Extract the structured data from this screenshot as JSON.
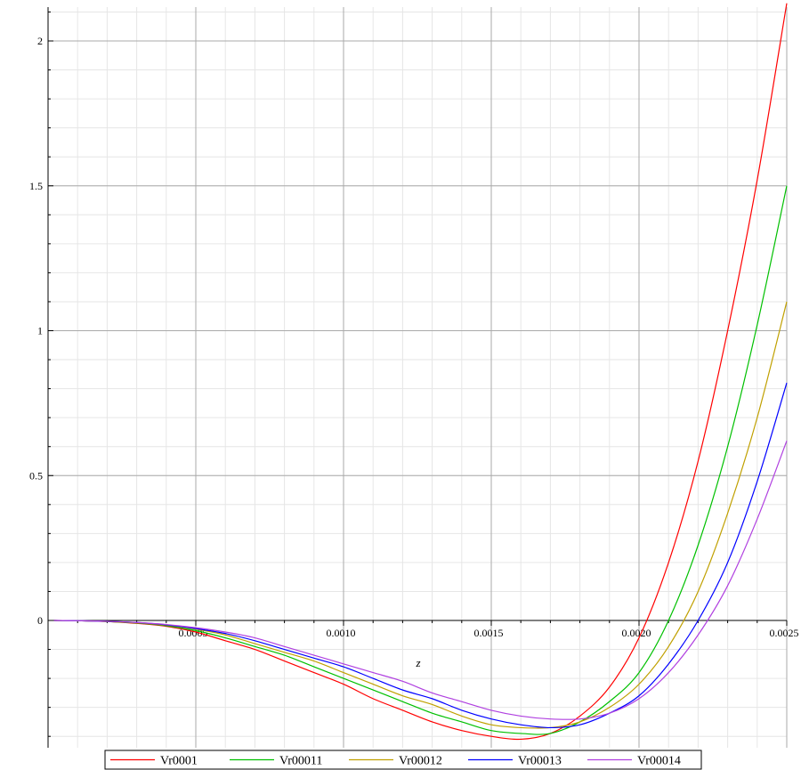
{
  "chart_data": {
    "type": "line",
    "title": "",
    "xlabel": "z",
    "ylabel": "",
    "xlim": [
      0,
      0.0025
    ],
    "ylim": [
      -0.42,
      2.13
    ],
    "grid": true,
    "legend_position": "bottom",
    "x_ticks": [
      {
        "value": 0.0005,
        "label": "0.0005"
      },
      {
        "value": 0.001,
        "label": "0.0010"
      },
      {
        "value": 0.0015,
        "label": "0.0015"
      },
      {
        "value": 0.002,
        "label": "0.0020"
      },
      {
        "value": 0.0025,
        "label": "0.0025"
      }
    ],
    "y_ticks": [
      {
        "value": 0,
        "label": "0"
      },
      {
        "value": 0.5,
        "label": "0.5"
      },
      {
        "value": 1,
        "label": "1"
      },
      {
        "value": 1.5,
        "label": "1.5"
      },
      {
        "value": 2,
        "label": "2"
      }
    ],
    "x": [
      2e-05,
      0.0001,
      0.0002,
      0.0003,
      0.0004,
      0.0005,
      0.0006,
      0.0007,
      0.0008,
      0.0009,
      0.001,
      0.0011,
      0.0012,
      0.0013,
      0.0014,
      0.0015,
      0.0016,
      0.0017,
      0.0018,
      0.0019,
      0.002,
      0.0021,
      0.0022,
      0.0023,
      0.0024,
      0.0025
    ],
    "series": [
      {
        "name": "Vr0001",
        "color": "#ff0000",
        "values": [
          0,
          -0.001,
          -0.004,
          -0.01,
          -0.02,
          -0.04,
          -0.07,
          -0.1,
          -0.14,
          -0.18,
          -0.22,
          -0.27,
          -0.31,
          -0.35,
          -0.38,
          -0.4,
          -0.41,
          -0.39,
          -0.33,
          -0.23,
          -0.06,
          0.2,
          0.55,
          1.0,
          1.52,
          2.13
        ]
      },
      {
        "name": "Vr00011",
        "color": "#00c000",
        "values": [
          0,
          -0.001,
          -0.004,
          -0.009,
          -0.018,
          -0.035,
          -0.06,
          -0.09,
          -0.12,
          -0.16,
          -0.2,
          -0.24,
          -0.28,
          -0.32,
          -0.35,
          -0.38,
          -0.39,
          -0.39,
          -0.35,
          -0.28,
          -0.18,
          0.0,
          0.26,
          0.6,
          1.02,
          1.5
        ]
      },
      {
        "name": "Vr00012",
        "color": "#c0a000",
        "values": [
          0,
          -0.001,
          -0.003,
          -0.008,
          -0.016,
          -0.03,
          -0.05,
          -0.08,
          -0.11,
          -0.14,
          -0.18,
          -0.22,
          -0.26,
          -0.29,
          -0.33,
          -0.36,
          -0.37,
          -0.37,
          -0.35,
          -0.3,
          -0.22,
          -0.09,
          0.1,
          0.37,
          0.7,
          1.1
        ]
      },
      {
        "name": "Vr00013",
        "color": "#0000ff",
        "values": [
          0,
          -0.001,
          -0.003,
          -0.007,
          -0.015,
          -0.028,
          -0.045,
          -0.07,
          -0.1,
          -0.13,
          -0.16,
          -0.2,
          -0.24,
          -0.27,
          -0.31,
          -0.34,
          -0.36,
          -0.37,
          -0.36,
          -0.32,
          -0.26,
          -0.15,
          0.0,
          0.2,
          0.48,
          0.82
        ]
      },
      {
        "name": "Vr00014",
        "color": "#b040e0",
        "values": [
          0,
          -0.001,
          -0.003,
          -0.007,
          -0.014,
          -0.025,
          -0.04,
          -0.06,
          -0.09,
          -0.12,
          -0.15,
          -0.18,
          -0.21,
          -0.25,
          -0.28,
          -0.31,
          -0.33,
          -0.34,
          -0.34,
          -0.32,
          -0.27,
          -0.18,
          -0.05,
          0.12,
          0.35,
          0.62
        ]
      }
    ]
  }
}
